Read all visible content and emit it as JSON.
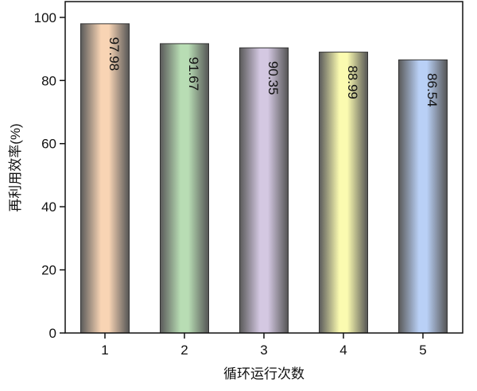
{
  "chart_data": {
    "type": "bar",
    "title": "",
    "xlabel": "循环运行次数",
    "ylabel": "再利用效率(%)",
    "categories": [
      "1",
      "2",
      "3",
      "4",
      "5"
    ],
    "values": [
      97.98,
      91.67,
      90.35,
      88.99,
      86.54
    ],
    "data_labels": [
      "97.98",
      "91.67",
      "90.35",
      "88.99",
      "86.54"
    ],
    "ylim": [
      0,
      105
    ],
    "yticks": [
      0,
      20,
      40,
      60,
      80,
      100
    ],
    "ytick_labels": [
      "0",
      "20",
      "40",
      "60",
      "80",
      "100"
    ],
    "grid": false,
    "bar_colors": [
      "#f8d4b4",
      "#b8ddb4",
      "#d4c8e2",
      "#fbfbb0",
      "#b9d0f6"
    ]
  }
}
